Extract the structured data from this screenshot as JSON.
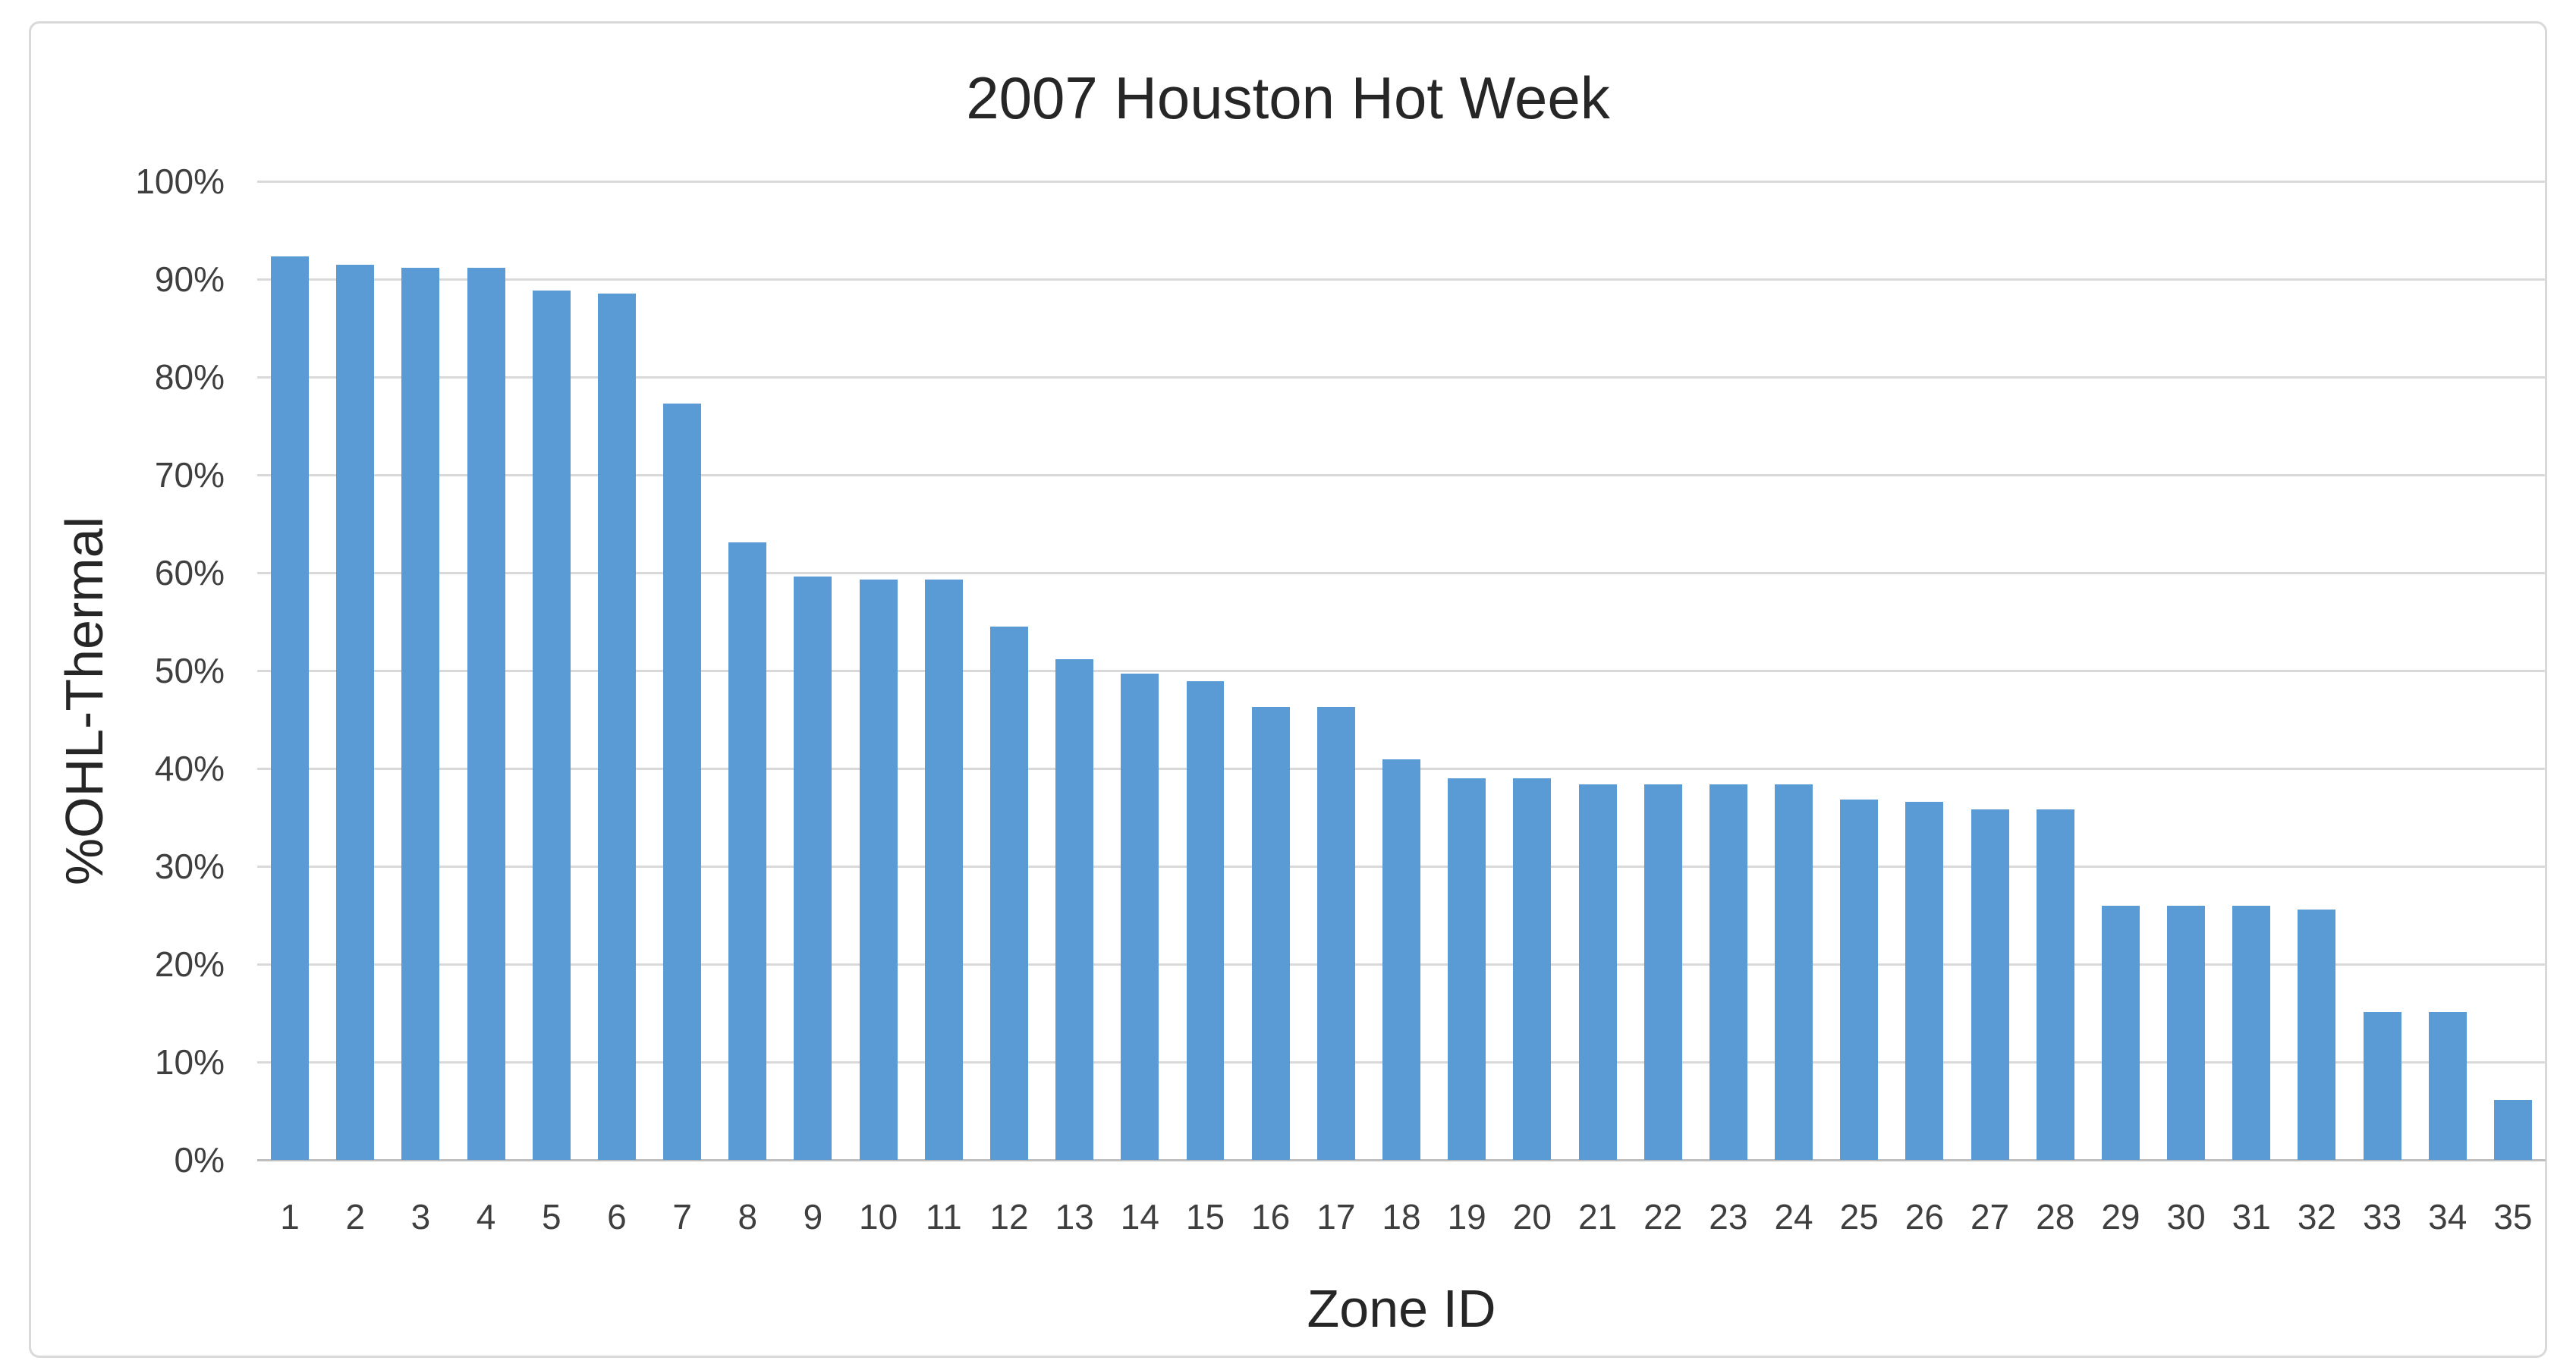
{
  "chart_data": {
    "type": "bar",
    "title": "2007 Houston Hot Week",
    "xlabel": "Zone ID",
    "ylabel": "%OHL-Thermal",
    "categories": [
      "1",
      "2",
      "3",
      "4",
      "5",
      "6",
      "7",
      "8",
      "9",
      "10",
      "11",
      "12",
      "13",
      "14",
      "15",
      "16",
      "17",
      "18",
      "19",
      "20",
      "21",
      "22",
      "23",
      "24",
      "25",
      "26",
      "27",
      "28",
      "29",
      "30",
      "31",
      "32",
      "33",
      "34",
      "35"
    ],
    "values": [
      92.3,
      91.5,
      91.2,
      91.2,
      88.8,
      88.5,
      77.3,
      63.1,
      59.6,
      59.3,
      59.3,
      54.5,
      51.2,
      49.7,
      48.9,
      46.3,
      46.3,
      40.9,
      39.0,
      39.0,
      38.4,
      38.4,
      38.4,
      38.4,
      36.8,
      36.6,
      35.8,
      35.8,
      26.0,
      26.0,
      26.0,
      25.6,
      15.1,
      15.1,
      6.1
    ],
    "ylim": [
      0,
      100
    ],
    "ytick_labels": [
      "0%",
      "10%",
      "20%",
      "30%",
      "40%",
      "50%",
      "60%",
      "70%",
      "80%",
      "90%",
      "100%"
    ],
    "grid": "horizontal",
    "legend": "none",
    "colors": {
      "bar": "#5B9BD5",
      "gridline": "#D9D9D9",
      "axis_line": "#BFBFBF",
      "tick_text": "#3F3F3F",
      "title_text": "#262626",
      "frame_border": "#D9D9D9",
      "background": "#FFFFFF"
    }
  }
}
